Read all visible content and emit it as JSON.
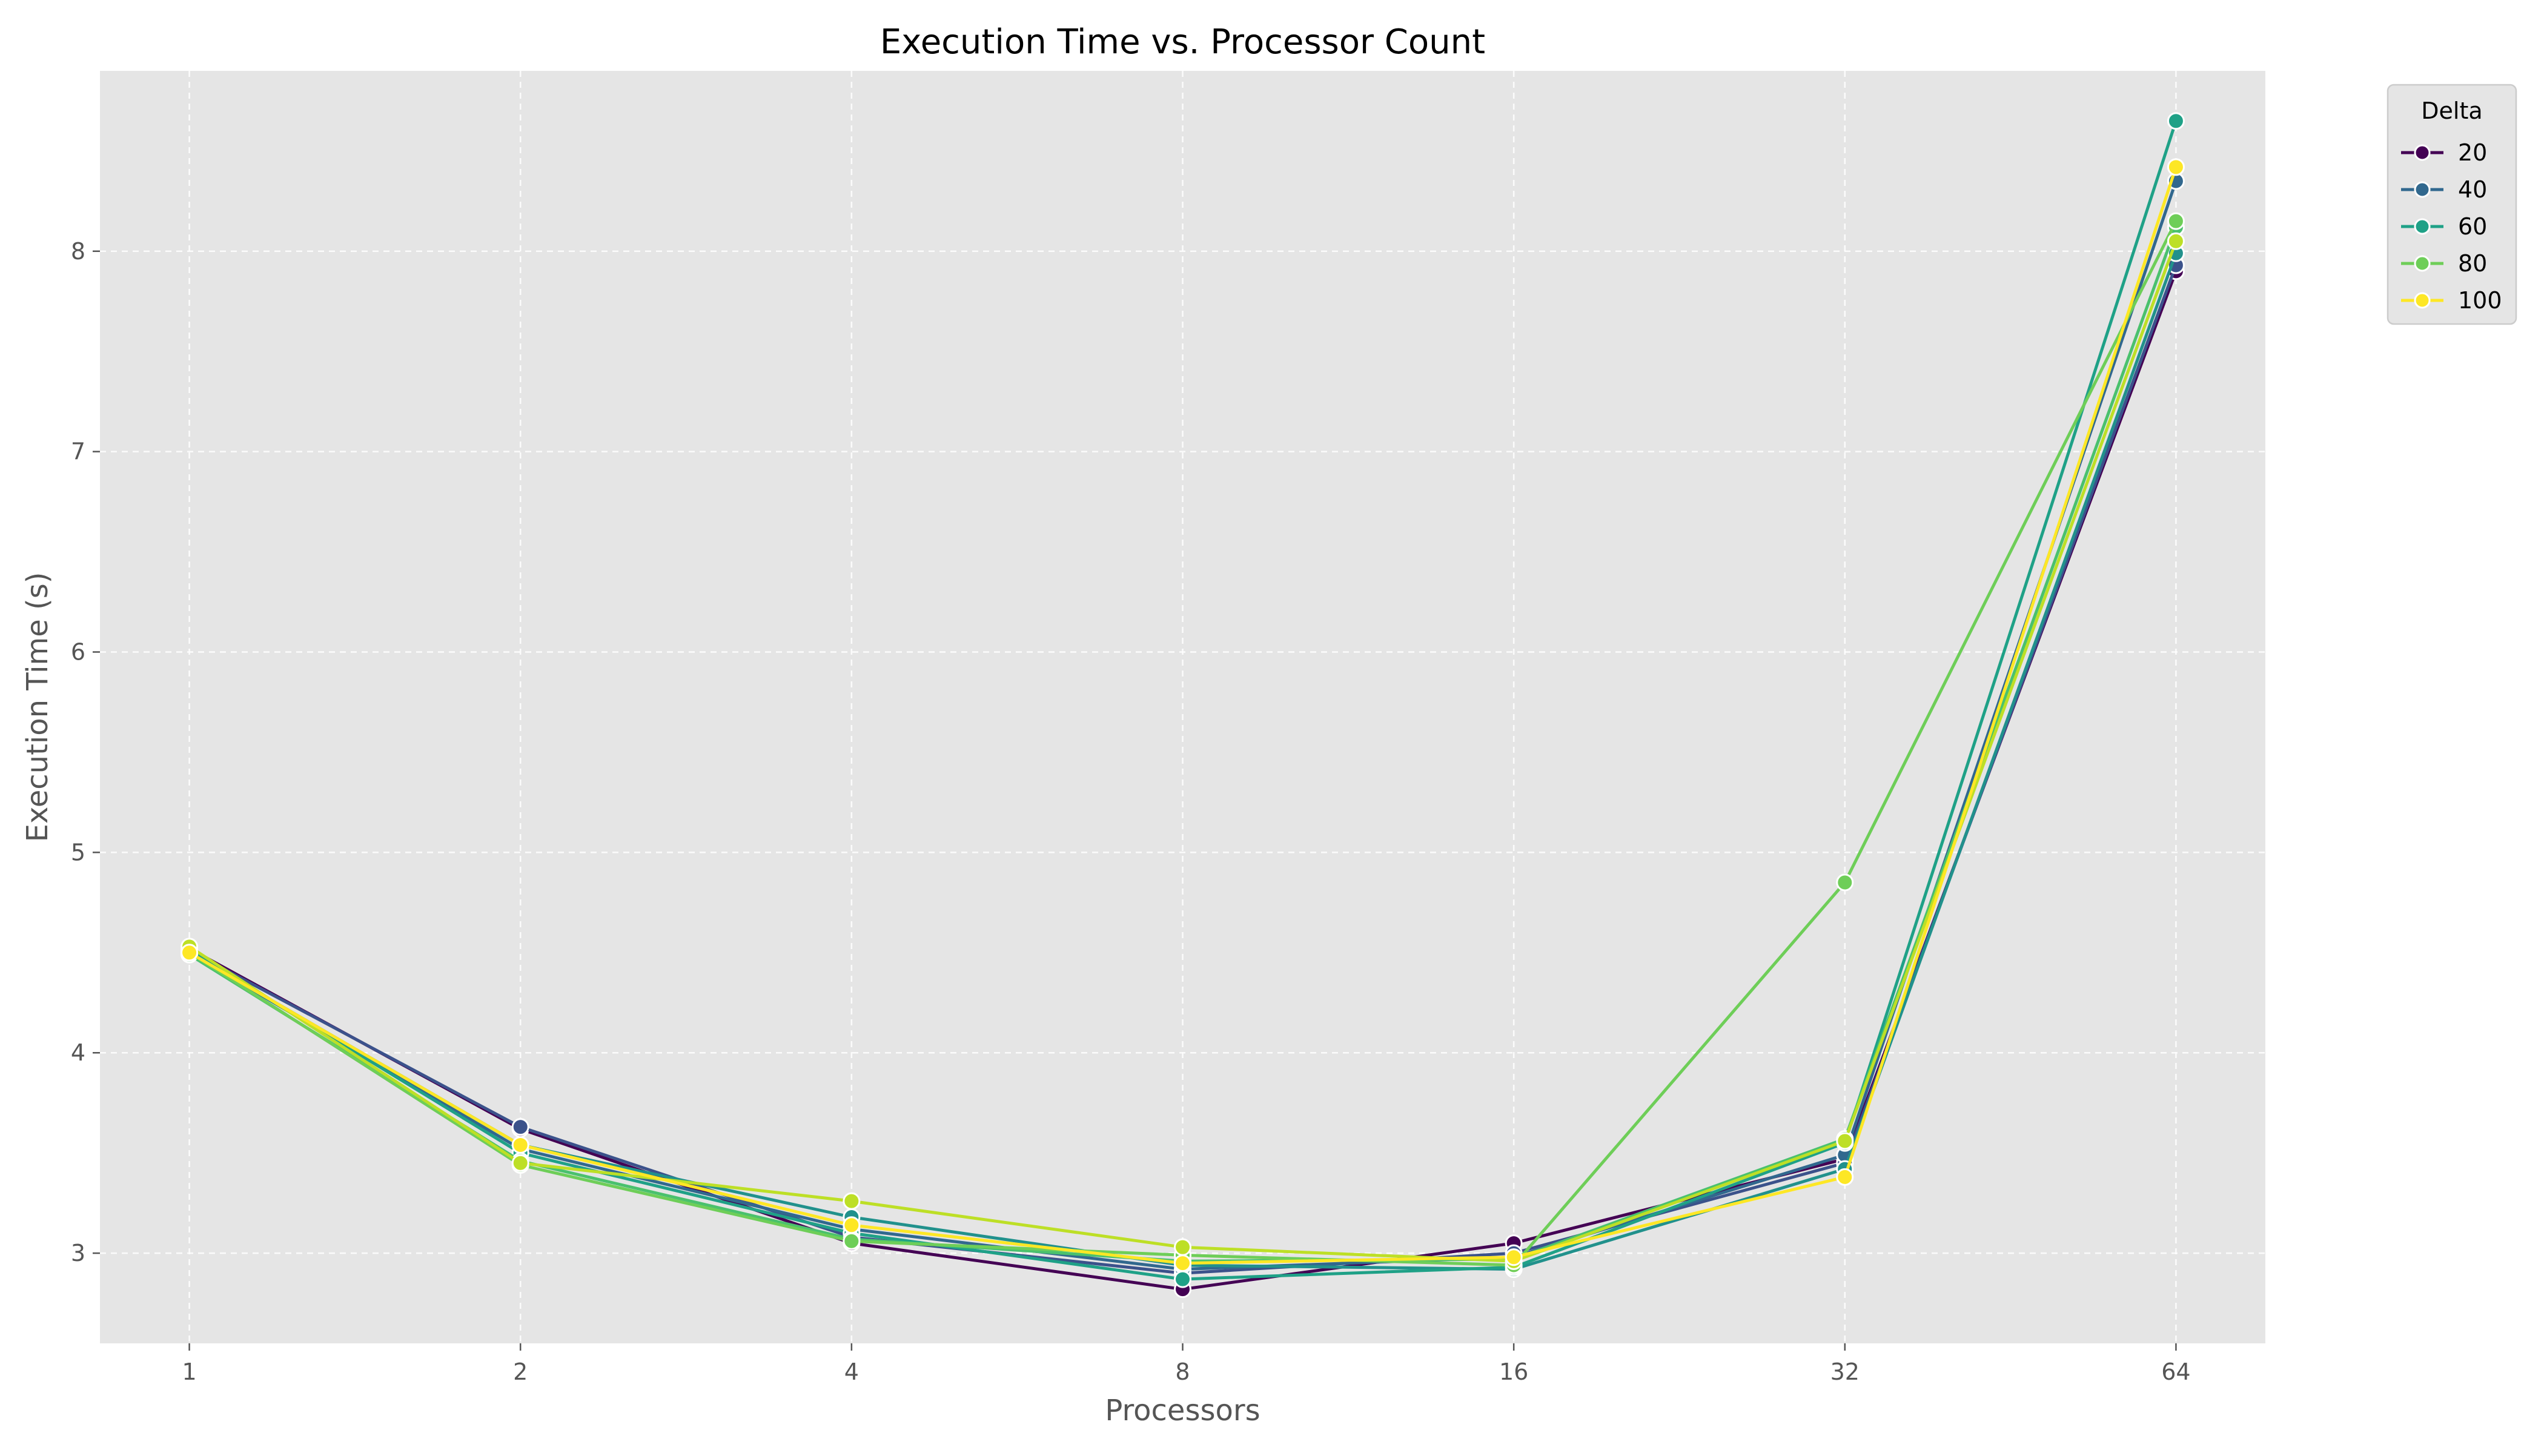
{
  "chart_data": {
    "type": "line",
    "title": "Execution Time vs. Processor Count",
    "xlabel": "Processors",
    "ylabel": "Execution Time (s)",
    "x_scale": "log2",
    "x": [
      1,
      2,
      4,
      8,
      16,
      32,
      64
    ],
    "x_tick_labels": [
      "1",
      "2",
      "4",
      "8",
      "16",
      "32",
      "64"
    ],
    "y_ticks": [
      3,
      4,
      5,
      6,
      7,
      8
    ],
    "ylim": [
      2.55,
      8.9
    ],
    "grid": true,
    "legend": {
      "title": "Delta",
      "placement": "outside top-right"
    },
    "series": [
      {
        "name": "20",
        "color": "#440154",
        "values": [
          4.52,
          3.62,
          3.05,
          2.82,
          3.05,
          3.47,
          7.9
        ]
      },
      {
        "name": "",
        "color": "#3b528b",
        "values": [
          4.51,
          3.63,
          3.08,
          2.9,
          3.0,
          3.45,
          7.93
        ]
      },
      {
        "name": "40",
        "color": "#31688e",
        "values": [
          4.5,
          3.52,
          3.12,
          2.92,
          2.98,
          3.49,
          8.35
        ]
      },
      {
        "name": "",
        "color": "#21918c",
        "values": [
          4.5,
          3.54,
          3.18,
          2.94,
          2.92,
          3.42,
          7.99
        ]
      },
      {
        "name": "60",
        "color": "#1fa187",
        "values": [
          4.51,
          3.5,
          3.1,
          2.87,
          2.93,
          3.55,
          8.65
        ]
      },
      {
        "name": "",
        "color": "#4ac16d",
        "values": [
          4.49,
          3.46,
          3.07,
          2.96,
          2.97,
          3.57,
          8.12
        ]
      },
      {
        "name": "80",
        "color": "#6ece58",
        "values": [
          4.5,
          3.44,
          3.06,
          2.99,
          2.94,
          4.85,
          8.15
        ]
      },
      {
        "name": "",
        "color": "#bddf26",
        "values": [
          4.53,
          3.45,
          3.26,
          3.03,
          2.96,
          3.56,
          8.05
        ]
      },
      {
        "name": "100",
        "color": "#fde725",
        "values": [
          4.5,
          3.54,
          3.14,
          2.95,
          2.98,
          3.38,
          8.42
        ]
      }
    ]
  }
}
